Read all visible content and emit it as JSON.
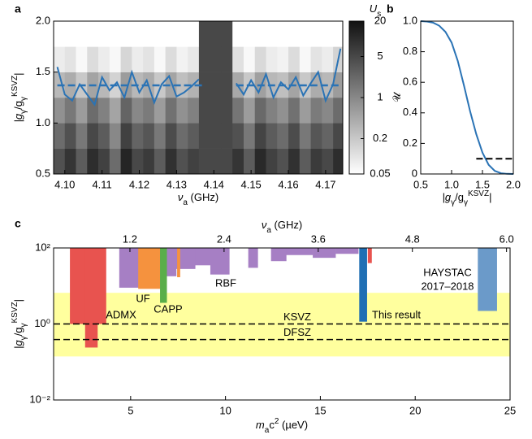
{
  "chart_data": [
    {
      "type": "heatmap",
      "panel": "a",
      "xlim": [
        4.097,
        4.1746
      ],
      "ylim": [
        0.5,
        2.0
      ],
      "xticks": [
        {
          "value": 4.1,
          "label": "4.10"
        },
        4.11,
        4.12,
        4.13,
        4.14,
        4.15,
        4.16,
        4.17
      ],
      "yticks": [
        0.5,
        {
          "value": 1.0,
          "label": "1.0"
        },
        {
          "value": 1.5,
          "label": "1.5"
        },
        {
          "value": 2.0,
          "label": "2.0"
        }
      ],
      "xlabel": [
        {
          "text": "ν"
        },
        {
          "text": "a",
          "sub": true
        },
        {
          "text": " (GHz)"
        }
      ],
      "ylabel": [
        {
          "text": "|g"
        },
        {
          "text": "γ",
          "sub": true
        },
        {
          "text": "/g"
        },
        {
          "text": "γ",
          "sub": true
        },
        {
          "text": "KSVZ",
          "sup": true
        },
        {
          "text": "|"
        }
      ],
      "heatmap": {
        "xbins": [
          4.097,
          4.1,
          4.103,
          4.106,
          4.109,
          4.112,
          4.115,
          4.118,
          4.121,
          4.124,
          4.127,
          4.13,
          4.133,
          4.136,
          4.139,
          4.142,
          4.145,
          4.148,
          4.151,
          4.154,
          4.157,
          4.16,
          4.163,
          4.166,
          4.169,
          4.172,
          4.175
        ],
        "ybins": [
          0.5,
          0.75,
          1.0,
          1.25,
          1.5,
          1.75,
          2.0
        ],
        "z": [
          [
            4,
            8,
            3,
            10,
            6,
            2,
            12,
            5,
            7,
            3,
            9,
            4,
            6,
            5,
            5,
            5,
            8,
            3,
            11,
            6,
            4,
            9,
            3,
            7,
            5,
            10
          ],
          [
            2,
            4,
            1.5,
            5,
            3,
            1,
            6,
            2.5,
            3.5,
            1.5,
            4.5,
            2,
            3,
            5,
            5,
            5,
            4,
            1.5,
            5.5,
            3,
            2,
            4.5,
            1.5,
            3.5,
            2.5,
            5
          ],
          [
            0.8,
            1.5,
            0.6,
            2,
            1.2,
            0.5,
            2.5,
            1,
            1.4,
            0.6,
            1.8,
            0.8,
            1.2,
            5,
            5,
            5,
            1.6,
            0.6,
            2.2,
            1.2,
            0.8,
            1.8,
            0.6,
            1.4,
            1,
            2
          ],
          [
            0.3,
            0.4,
            0.2,
            0.5,
            0.3,
            0.15,
            0.6,
            0.3,
            0.4,
            0.2,
            0.5,
            0.25,
            0.35,
            5,
            5,
            5,
            0.45,
            0.2,
            0.55,
            0.3,
            0.25,
            0.5,
            0.2,
            0.4,
            0.3,
            0.6
          ],
          [
            0.08,
            0.1,
            0.06,
            0.12,
            0.08,
            0.06,
            0.14,
            0.08,
            0.1,
            0.06,
            0.12,
            0.07,
            0.09,
            5,
            5,
            5,
            0.11,
            0.06,
            0.13,
            0.08,
            0.07,
            0.12,
            0.06,
            0.1,
            0.08,
            0.15
          ],
          [
            0.05,
            0.05,
            0.05,
            0.05,
            0.05,
            0.05,
            0.05,
            0.05,
            0.05,
            0.05,
            0.05,
            0.05,
            0.05,
            5,
            5,
            5,
            0.05,
            0.05,
            0.05,
            0.05,
            0.05,
            0.05,
            0.05,
            0.05,
            0.05,
            0.05
          ]
        ],
        "clim": [
          0.05,
          20
        ],
        "cticks": [
          0.05,
          0.2,
          1,
          5,
          20
        ],
        "clog": true,
        "clabel": [
          {
            "text": "U"
          },
          {
            "text": "s",
            "sub": true
          }
        ]
      },
      "series": [
        {
          "style": "solid",
          "color": "#2a73b5",
          "x": [
            4.098,
            4.1,
            4.102,
            4.104,
            4.106,
            4.108,
            4.11,
            4.112,
            4.114,
            4.116,
            4.118,
            4.12,
            4.122,
            4.124,
            4.126,
            4.128,
            4.13,
            4.132,
            4.134,
            4.136,
            4.141,
            4.146,
            4.148,
            4.15,
            4.152,
            4.154,
            4.156,
            4.158,
            4.16,
            4.162,
            4.164,
            4.166,
            4.168,
            4.17,
            4.172,
            4.174
          ],
          "values": [
            1.55,
            1.28,
            1.22,
            1.38,
            1.28,
            1.18,
            1.45,
            1.32,
            1.4,
            1.25,
            1.5,
            1.3,
            1.42,
            1.2,
            1.38,
            1.46,
            1.26,
            1.3,
            1.36,
            1.43,
            null,
            1.39,
            1.28,
            1.42,
            1.3,
            1.48,
            1.25,
            1.4,
            1.33,
            1.45,
            1.27,
            1.39,
            1.5,
            1.22,
            1.38,
            1.73
          ]
        },
        {
          "style": "dashed",
          "color": "#2a73b5",
          "x": [
            4.098,
            4.137,
            4.1415,
            4.146,
            4.174
          ],
          "values": [
            1.37,
            1.37,
            null,
            1.37,
            1.37
          ]
        }
      ]
    },
    {
      "type": "line",
      "panel": "b",
      "xlim": [
        0.5,
        2.0
      ],
      "ylim": [
        0,
        1.0
      ],
      "xticks": [
        0.5,
        {
          "value": 1.0,
          "label": "1.0"
        },
        {
          "value": 1.5,
          "label": "1.5"
        },
        {
          "value": 2.0,
          "label": "2.0"
        }
      ],
      "yticks": [
        0,
        0.2,
        0.4,
        0.6,
        0.8,
        {
          "value": 1.0,
          "label": "1.0"
        }
      ],
      "xlabel": [
        {
          "text": "|g"
        },
        {
          "text": "γ",
          "sub": true
        },
        {
          "text": "/g"
        },
        {
          "text": "γ",
          "sub": true
        },
        {
          "text": "KSVZ",
          "sup": true
        },
        {
          "text": "|"
        }
      ],
      "ylabel": [
        {
          "text": "𝒰"
        }
      ],
      "series": [
        {
          "style": "solid",
          "color": "#2a73b5",
          "x": [
            0.5,
            0.6,
            0.7,
            0.8,
            0.9,
            1.0,
            1.1,
            1.2,
            1.3,
            1.4,
            1.5,
            1.6,
            1.7,
            1.8,
            1.9,
            2.0
          ],
          "values": [
            1.0,
            0.997,
            0.99,
            0.97,
            0.93,
            0.86,
            0.74,
            0.58,
            0.41,
            0.26,
            0.14,
            0.06,
            0.02,
            0.005,
            0.001,
            0
          ]
        },
        {
          "style": "dashed",
          "color": "#000000",
          "x": [
            1.4,
            2.0
          ],
          "values": [
            0.1,
            0.1
          ]
        }
      ]
    },
    {
      "type": "exclusion",
      "panel": "c",
      "xlim": [
        0.94,
        25
      ],
      "ylim": [
        0.01,
        100
      ],
      "ylog": true,
      "xticks": [
        5,
        10,
        15,
        20,
        25
      ],
      "yticks": [
        {
          "value": 0.01,
          "label": "10⁻²"
        },
        {
          "value": 1,
          "label": "10⁰"
        },
        {
          "value": 100,
          "label": "10²"
        }
      ],
      "x2lim": [
        0.2273,
        6.045
      ],
      "x2ticks": [
        1.2,
        2.4,
        3.6,
        4.8,
        {
          "value": 6.0,
          "label": "6.0"
        }
      ],
      "xlabel": [
        {
          "text": "m"
        },
        {
          "text": "a",
          "sub": true
        },
        {
          "text": "c"
        },
        {
          "text": "2",
          "sup": true
        },
        {
          "text": " (µeV)"
        }
      ],
      "x2label": [
        {
          "text": "ν"
        },
        {
          "text": "a",
          "sub": true
        },
        {
          "text": " (GHz)"
        }
      ],
      "ylabel": [
        {
          "text": "|g"
        },
        {
          "text": "γ",
          "sub": true
        },
        {
          "text": "/g"
        },
        {
          "text": "γ",
          "sub": true
        },
        {
          "text": "KSVZ",
          "sup": true
        },
        {
          "text": "|"
        }
      ],
      "band": {
        "lower": 0.14,
        "upper": 6.6,
        "color": "#ffff9e"
      },
      "lines": [
        {
          "name": "KSVZ",
          "value": 1.0
        },
        {
          "name": "DFSZ",
          "value": 0.39
        }
      ],
      "regions": [
        {
          "label": [
            "RBF"
          ],
          "color": "#a67fc4",
          "bins": [
            4.4,
            5.4,
            6.6,
            7.4,
            8.4,
            9.2,
            10.2
          ],
          "values": [
            9,
            40,
            18,
            28,
            35,
            20
          ]
        },
        {
          "color": "#a67fc4",
          "bins": [
            11.2,
            11.7
          ],
          "values": [
            30
          ]
        },
        {
          "color": "#a67fc4",
          "bins": [
            12.4,
            13.2,
            14.6,
            15.8,
            17.0
          ],
          "values": [
            45,
            65,
            55,
            70
          ]
        },
        {
          "label": [
            "UF"
          ],
          "color": "#f5923e",
          "bins": [
            5.4,
            6.55
          ],
          "values": [
            8.4
          ]
        },
        {
          "color": "#f5923e",
          "bins": [
            7.45,
            7.6
          ],
          "values": [
            17
          ]
        },
        {
          "label": [
            "CAPP"
          ],
          "color": "#5aae4a",
          "bins": [
            6.55,
            6.9
          ],
          "values": [
            3.6
          ]
        },
        {
          "label": [
            "ADMX"
          ],
          "color": "#e8534f",
          "bins": [
            1.8,
            2.6,
            3.25,
            3.7
          ],
          "values": [
            1.0,
            0.24,
            1.0
          ]
        },
        {
          "color": "#e8534f",
          "bins": [
            17.5,
            17.7
          ],
          "values": [
            40
          ]
        },
        {
          "label": [
            "This result"
          ],
          "color": "#1f6fb4",
          "bins": [
            17.05,
            17.45
          ],
          "values": [
            1.15
          ]
        },
        {
          "label": [
            "HAYSTAC",
            "2017–2018"
          ],
          "color": "#6b9ac9",
          "bins": [
            23.3,
            24.3
          ],
          "values": [
            2.2
          ]
        }
      ]
    }
  ]
}
